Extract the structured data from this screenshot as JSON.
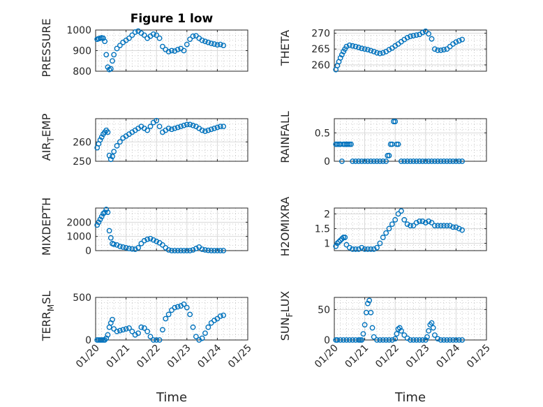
{
  "figure": {
    "title": "Figure 1 low"
  },
  "chart_data": [
    {
      "type": "scatter",
      "ylabel": "PRESSURE",
      "title": "Figure 1 low",
      "xlim": [
        0,
        5
      ],
      "ylim": [
        800,
        1000
      ],
      "yticks": [
        800,
        900,
        1000
      ],
      "xticks": [
        0,
        1,
        2,
        3,
        4,
        5
      ],
      "xticklabels": [
        "01/20",
        "01/21",
        "01/22",
        "01/23",
        "01/24",
        "01/25"
      ],
      "show_xticklabels": false,
      "grid": true,
      "series": [
        {
          "x": [
            0.05,
            0.1,
            0.15,
            0.2,
            0.25,
            0.3,
            0.35,
            0.4,
            0.45,
            0.5,
            0.55,
            0.6,
            0.7,
            0.8,
            0.9,
            1.0,
            1.1,
            1.2,
            1.3,
            1.4,
            1.5,
            1.6,
            1.7,
            1.8,
            1.9,
            2.0,
            2.1,
            2.2,
            2.3,
            2.4,
            2.5,
            2.6,
            2.7,
            2.8,
            2.9,
            3.0,
            3.1,
            3.2,
            3.3,
            3.4,
            3.5,
            3.6,
            3.7,
            3.8,
            3.9,
            4.0,
            4.1,
            4.2
          ],
          "y": [
            955,
            958,
            960,
            962,
            960,
            945,
            880,
            820,
            808,
            812,
            850,
            880,
            910,
            925,
            940,
            950,
            960,
            975,
            990,
            995,
            985,
            975,
            960,
            970,
            980,
            975,
            960,
            920,
            905,
            895,
            900,
            898,
            905,
            910,
            900,
            930,
            955,
            970,
            972,
            960,
            950,
            945,
            940,
            935,
            932,
            928,
            930,
            925
          ]
        }
      ]
    },
    {
      "type": "scatter",
      "ylabel": "THETA",
      "xlim": [
        0,
        5
      ],
      "ylim": [
        258,
        271
      ],
      "yticks": [
        260,
        265,
        270
      ],
      "xticks": [
        0,
        1,
        2,
        3,
        4,
        5
      ],
      "show_xticklabels": false,
      "grid": true,
      "series": [
        {
          "x": [
            0.05,
            0.1,
            0.15,
            0.2,
            0.25,
            0.3,
            0.35,
            0.4,
            0.5,
            0.6,
            0.7,
            0.8,
            0.9,
            1.0,
            1.1,
            1.2,
            1.3,
            1.4,
            1.5,
            1.6,
            1.7,
            1.8,
            1.9,
            2.0,
            2.1,
            2.2,
            2.3,
            2.4,
            2.5,
            2.6,
            2.7,
            2.8,
            2.9,
            3.0,
            3.1,
            3.2,
            3.3,
            3.4,
            3.5,
            3.6,
            3.7,
            3.8,
            3.9,
            4.0,
            4.1,
            4.2
          ],
          "y": [
            258.5,
            259.8,
            261,
            262.2,
            263.2,
            264.2,
            265,
            265.8,
            266.2,
            266,
            265.8,
            265.5,
            265.2,
            265,
            264.8,
            264.5,
            264.2,
            263.8,
            263.6,
            263.8,
            264.2,
            264.8,
            265.3,
            266,
            266.6,
            267.3,
            268,
            268.6,
            269,
            269.2,
            269.4,
            269.6,
            270.2,
            270.6,
            269.8,
            268.2,
            265,
            264.6,
            264.6,
            264.8,
            265,
            265.8,
            266.6,
            267.2,
            267.6,
            268
          ]
        }
      ]
    },
    {
      "type": "scatter",
      "ylabel": "AIR_TEMP",
      "xlim": [
        0,
        5
      ],
      "ylim": [
        250,
        272
      ],
      "yticks": [
        250,
        260
      ],
      "xticks": [
        0,
        1,
        2,
        3,
        4,
        5
      ],
      "show_xticklabels": false,
      "grid": true,
      "series": [
        {
          "x": [
            0.05,
            0.1,
            0.15,
            0.2,
            0.25,
            0.3,
            0.35,
            0.4,
            0.45,
            0.5,
            0.55,
            0.6,
            0.7,
            0.8,
            0.9,
            1.0,
            1.1,
            1.2,
            1.3,
            1.4,
            1.5,
            1.6,
            1.7,
            1.8,
            1.9,
            2.0,
            2.1,
            2.2,
            2.3,
            2.4,
            2.5,
            2.6,
            2.7,
            2.8,
            2.9,
            3.0,
            3.1,
            3.2,
            3.3,
            3.4,
            3.5,
            3.6,
            3.7,
            3.8,
            3.9,
            4.0,
            4.1,
            4.2
          ],
          "y": [
            257,
            259,
            261,
            262.5,
            264,
            265,
            266,
            265,
            253,
            251,
            252.5,
            255,
            258,
            260,
            262,
            263,
            264,
            265,
            266,
            267,
            268,
            267,
            266,
            268,
            270,
            271,
            268,
            265,
            266,
            267,
            266.5,
            267,
            267.5,
            268,
            268.5,
            269,
            269,
            268.5,
            268,
            267,
            266,
            265.5,
            266,
            266.5,
            267,
            267.5,
            268,
            268
          ]
        }
      ]
    },
    {
      "type": "scatter",
      "ylabel": "RAINFALL",
      "xlim": [
        0,
        5
      ],
      "ylim": [
        0,
        0.75
      ],
      "yticks": [
        0,
        0.5
      ],
      "xticks": [
        0,
        1,
        2,
        3,
        4,
        5
      ],
      "show_xticklabels": false,
      "grid": true,
      "series": [
        {
          "x": [
            0.05,
            0.1,
            0.15,
            0.2,
            0.25,
            0.3,
            0.35,
            0.4,
            0.45,
            0.5,
            0.55,
            0.6,
            0.7,
            0.8,
            0.9,
            1.0,
            1.1,
            1.2,
            1.3,
            1.4,
            1.5,
            1.6,
            1.7,
            1.75,
            1.8,
            1.85,
            1.9,
            1.95,
            2.0,
            2.05,
            2.1,
            2.2,
            2.3,
            2.4,
            2.5,
            2.6,
            2.7,
            2.8,
            2.9,
            3.0,
            3.1,
            3.2,
            3.3,
            3.4,
            3.5,
            3.6,
            3.7,
            3.8,
            3.9,
            4.0,
            4.1,
            4.2
          ],
          "y": [
            0.3,
            0.3,
            0.3,
            0.3,
            0,
            0.3,
            0.3,
            0.3,
            0.3,
            0.3,
            0.3,
            0,
            0,
            0,
            0,
            0,
            0,
            0,
            0,
            0,
            0,
            0,
            0,
            0.1,
            0.1,
            0.3,
            0.3,
            0.7,
            0.7,
            0.3,
            0.3,
            0,
            0,
            0,
            0,
            0,
            0,
            0,
            0,
            0,
            0,
            0,
            0,
            0,
            0,
            0,
            0,
            0,
            0,
            0,
            0,
            0
          ]
        }
      ]
    },
    {
      "type": "scatter",
      "ylabel": "MIXDEPTH",
      "xlim": [
        0,
        5
      ],
      "ylim": [
        0,
        3000
      ],
      "yticks": [
        0,
        1000,
        2000
      ],
      "xticks": [
        0,
        1,
        2,
        3,
        4,
        5
      ],
      "show_xticklabels": false,
      "grid": true,
      "series": [
        {
          "x": [
            0.05,
            0.1,
            0.15,
            0.2,
            0.25,
            0.3,
            0.35,
            0.4,
            0.45,
            0.5,
            0.55,
            0.6,
            0.7,
            0.8,
            0.9,
            1.0,
            1.1,
            1.2,
            1.3,
            1.4,
            1.5,
            1.6,
            1.7,
            1.8,
            1.9,
            2.0,
            2.1,
            2.2,
            2.3,
            2.4,
            2.5,
            2.6,
            2.7,
            2.8,
            2.9,
            3.0,
            3.1,
            3.2,
            3.3,
            3.4,
            3.5,
            3.6,
            3.7,
            3.8,
            3.9,
            4.0,
            4.1,
            4.2
          ],
          "y": [
            1800,
            2000,
            2200,
            2400,
            2600,
            2700,
            2900,
            2700,
            1400,
            900,
            500,
            450,
            400,
            300,
            250,
            200,
            150,
            120,
            100,
            200,
            500,
            700,
            800,
            850,
            750,
            650,
            550,
            400,
            200,
            50,
            0,
            0,
            0,
            0,
            0,
            0,
            0,
            50,
            150,
            250,
            100,
            50,
            20,
            0,
            0,
            0,
            0,
            0
          ]
        }
      ]
    },
    {
      "type": "scatter",
      "ylabel": "H2OMIXRA",
      "xlim": [
        0,
        5
      ],
      "ylim": [
        0.75,
        2.2
      ],
      "yticks": [
        1,
        1.5,
        2
      ],
      "xticks": [
        0,
        1,
        2,
        3,
        4,
        5
      ],
      "show_xticklabels": false,
      "grid": true,
      "series": [
        {
          "x": [
            0.05,
            0.1,
            0.15,
            0.2,
            0.25,
            0.3,
            0.35,
            0.4,
            0.5,
            0.6,
            0.7,
            0.8,
            0.9,
            1.0,
            1.1,
            1.2,
            1.3,
            1.4,
            1.5,
            1.6,
            1.7,
            1.8,
            1.9,
            2.0,
            2.1,
            2.2,
            2.3,
            2.4,
            2.5,
            2.6,
            2.7,
            2.8,
            2.9,
            3.0,
            3.1,
            3.2,
            3.3,
            3.4,
            3.5,
            3.6,
            3.7,
            3.8,
            3.9,
            4.0,
            4.1,
            4.2
          ],
          "y": [
            0.9,
            1.0,
            1.05,
            1.1,
            1.15,
            1.2,
            1.2,
            0.95,
            0.85,
            0.8,
            0.8,
            0.8,
            0.85,
            0.8,
            0.8,
            0.8,
            0.8,
            0.85,
            1.0,
            1.2,
            1.35,
            1.5,
            1.65,
            1.8,
            2.0,
            2.1,
            1.8,
            1.65,
            1.6,
            1.6,
            1.7,
            1.75,
            1.75,
            1.7,
            1.75,
            1.7,
            1.6,
            1.6,
            1.6,
            1.6,
            1.6,
            1.6,
            1.55,
            1.55,
            1.5,
            1.45
          ]
        }
      ]
    },
    {
      "type": "scatter",
      "ylabel": "TERR_MSL",
      "xlim": [
        0,
        5
      ],
      "ylim": [
        0,
        500
      ],
      "yticks": [
        0,
        500
      ],
      "xticks": [
        0,
        1,
        2,
        3,
        4,
        5
      ],
      "xticklabels": [
        "01/20",
        "01/21",
        "01/22",
        "01/23",
        "01/24",
        "01/25"
      ],
      "show_xticklabels": true,
      "xlabel": "Time",
      "grid": true,
      "series": [
        {
          "x": [
            0.05,
            0.1,
            0.15,
            0.2,
            0.25,
            0.3,
            0.35,
            0.4,
            0.45,
            0.5,
            0.55,
            0.6,
            0.7,
            0.8,
            0.9,
            1.0,
            1.1,
            1.2,
            1.3,
            1.4,
            1.5,
            1.6,
            1.7,
            1.8,
            1.9,
            2.0,
            2.1,
            2.2,
            2.3,
            2.4,
            2.5,
            2.6,
            2.7,
            2.8,
            2.9,
            3.0,
            3.1,
            3.2,
            3.3,
            3.4,
            3.5,
            3.6,
            3.7,
            3.8,
            3.9,
            4.0,
            4.1,
            4.2
          ],
          "y": [
            0,
            0,
            0,
            0,
            0,
            0,
            20,
            60,
            150,
            200,
            240,
            130,
            100,
            110,
            120,
            130,
            140,
            100,
            60,
            80,
            150,
            140,
            100,
            40,
            0,
            0,
            0,
            120,
            250,
            300,
            350,
            380,
            390,
            400,
            420,
            380,
            300,
            150,
            40,
            0,
            20,
            80,
            150,
            200,
            230,
            250,
            280,
            290
          ]
        }
      ]
    },
    {
      "type": "scatter",
      "ylabel": "SUN_FLUX",
      "xlim": [
        0,
        5
      ],
      "ylim": [
        0,
        70
      ],
      "yticks": [
        0,
        50
      ],
      "xticks": [
        0,
        1,
        2,
        3,
        4,
        5
      ],
      "xticklabels": [
        "01/20",
        "01/21",
        "01/22",
        "01/23",
        "01/24",
        "01/25"
      ],
      "show_xticklabels": true,
      "xlabel": "Time",
      "grid": true,
      "series": [
        {
          "x": [
            0.05,
            0.1,
            0.2,
            0.3,
            0.4,
            0.5,
            0.6,
            0.7,
            0.8,
            0.85,
            0.9,
            0.95,
            1.0,
            1.05,
            1.1,
            1.15,
            1.2,
            1.25,
            1.3,
            1.4,
            1.5,
            1.6,
            1.7,
            1.8,
            1.9,
            2.0,
            2.05,
            2.1,
            2.15,
            2.2,
            2.3,
            2.4,
            2.5,
            2.6,
            2.7,
            2.8,
            2.9,
            3.0,
            3.05,
            3.1,
            3.15,
            3.2,
            3.25,
            3.3,
            3.4,
            3.5,
            3.6,
            3.7,
            3.8,
            3.9,
            4.0,
            4.1,
            4.2
          ],
          "y": [
            0,
            0,
            0,
            0,
            0,
            0,
            0,
            0,
            0,
            0,
            0,
            10,
            25,
            45,
            60,
            65,
            45,
            20,
            5,
            0,
            0,
            0,
            0,
            0,
            0,
            2,
            10,
            18,
            20,
            15,
            8,
            3,
            0,
            0,
            0,
            0,
            0,
            0,
            5,
            15,
            25,
            28,
            20,
            8,
            2,
            0,
            0,
            0,
            0,
            0,
            0,
            0,
            0
          ]
        }
      ]
    }
  ]
}
